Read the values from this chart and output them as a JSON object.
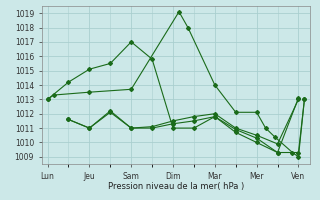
{
  "title": "",
  "xlabel": "Pression niveau de la mer( hPa )",
  "ylabel": "",
  "background_color": "#cce8e8",
  "grid_color": "#aacfcf",
  "line_color": "#1a6b1a",
  "ylim": [
    1008.5,
    1019.5
  ],
  "yticks": [
    1009,
    1010,
    1011,
    1012,
    1013,
    1014,
    1015,
    1016,
    1017,
    1018,
    1019
  ],
  "xtick_labels": [
    "Lun",
    "Jeu",
    "Sam",
    "Dim",
    "Mar",
    "Mer",
    "Ven"
  ],
  "xtick_positions": [
    0,
    14,
    28,
    42,
    56,
    70,
    84
  ],
  "xlim": [
    -2,
    88
  ],
  "series": [
    {
      "x": [
        0,
        2,
        14,
        28,
        44,
        47,
        56,
        63,
        70,
        73,
        76,
        82,
        84,
        86
      ],
      "y": [
        1013.0,
        1013.3,
        1013.5,
        1013.7,
        1019.1,
        1018.0,
        1014.0,
        1012.1,
        1012.1,
        1011.0,
        1010.4,
        1009.3,
        1009.0,
        1013.0
      ]
    },
    {
      "x": [
        7,
        14,
        21,
        28,
        35,
        42,
        49,
        56,
        63,
        70,
        77,
        84
      ],
      "y": [
        1011.6,
        1011.0,
        1012.1,
        1011.0,
        1011.1,
        1011.5,
        1011.8,
        1012.0,
        1011.0,
        1010.5,
        1009.9,
        1013.0
      ]
    },
    {
      "x": [
        7,
        14,
        21,
        28,
        35,
        42,
        49,
        56,
        63,
        70,
        77,
        84
      ],
      "y": [
        1011.6,
        1011.0,
        1012.2,
        1011.0,
        1011.0,
        1011.3,
        1011.5,
        1011.8,
        1010.7,
        1010.0,
        1009.3,
        1013.1
      ]
    },
    {
      "x": [
        0,
        7,
        14,
        21,
        28,
        35,
        42,
        49,
        56,
        63,
        70,
        77,
        84,
        86
      ],
      "y": [
        1013.0,
        1014.2,
        1015.1,
        1015.5,
        1017.0,
        1015.8,
        1011.0,
        1011.0,
        1011.8,
        1010.9,
        1010.3,
        1009.3,
        1009.3,
        1013.0
      ]
    }
  ]
}
